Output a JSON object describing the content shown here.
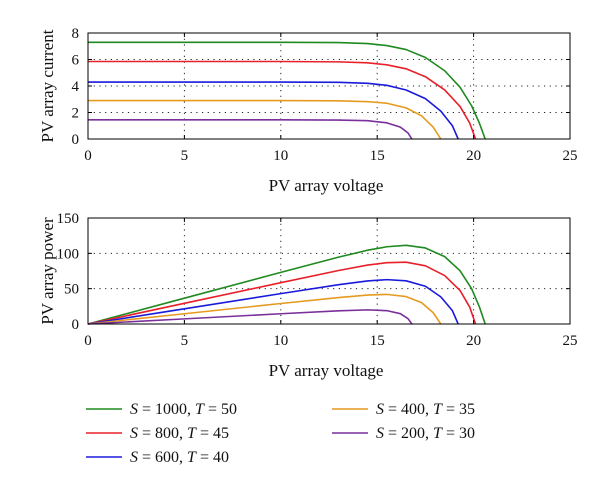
{
  "chart_data": [
    {
      "type": "line",
      "ylabel": "PV array current",
      "xlabel": "PV array voltage",
      "xlim": [
        0,
        25
      ],
      "ylim": [
        0,
        8
      ],
      "xticks": [
        0,
        5,
        10,
        15,
        20,
        25
      ],
      "yticks": [
        0,
        2,
        4,
        6,
        8
      ],
      "grid": true,
      "series": [
        {
          "name": "S = 1000, T = 50",
          "color": "#1f8a1f",
          "points": [
            [
              0,
              7.3
            ],
            [
              5,
              7.3
            ],
            [
              10,
              7.3
            ],
            [
              13,
              7.28
            ],
            [
              14.5,
              7.2
            ],
            [
              15.5,
              7.05
            ],
            [
              16.5,
              6.75
            ],
            [
              17.5,
              6.15
            ],
            [
              18.5,
              5.15
            ],
            [
              19.3,
              3.9
            ],
            [
              19.9,
              2.5
            ],
            [
              20.3,
              1.2
            ],
            [
              20.6,
              0
            ]
          ]
        },
        {
          "name": "S = 800, T = 45",
          "color": "#e8202a",
          "points": [
            [
              0,
              5.85
            ],
            [
              5,
              5.85
            ],
            [
              10,
              5.85
            ],
            [
              13,
              5.82
            ],
            [
              14.5,
              5.75
            ],
            [
              15.5,
              5.6
            ],
            [
              16.5,
              5.3
            ],
            [
              17.5,
              4.7
            ],
            [
              18.5,
              3.7
            ],
            [
              19.3,
              2.45
            ],
            [
              19.8,
              1.2
            ],
            [
              20.1,
              0
            ]
          ]
        },
        {
          "name": "S = 600, T = 40",
          "color": "#1a1adb",
          "points": [
            [
              0,
              4.3
            ],
            [
              5,
              4.3
            ],
            [
              10,
              4.3
            ],
            [
              13,
              4.28
            ],
            [
              14.5,
              4.2
            ],
            [
              15.5,
              4.05
            ],
            [
              16.5,
              3.7
            ],
            [
              17.5,
              3.05
            ],
            [
              18.3,
              2.1
            ],
            [
              18.9,
              1.0
            ],
            [
              19.2,
              0
            ]
          ]
        },
        {
          "name": "S = 400, T = 35",
          "color": "#e69a1e",
          "points": [
            [
              0,
              2.9
            ],
            [
              5,
              2.9
            ],
            [
              10,
              2.9
            ],
            [
              13,
              2.88
            ],
            [
              14.5,
              2.82
            ],
            [
              15.5,
              2.7
            ],
            [
              16.5,
              2.35
            ],
            [
              17.3,
              1.75
            ],
            [
              17.9,
              0.9
            ],
            [
              18.3,
              0
            ]
          ]
        },
        {
          "name": "S = 200, T = 30",
          "color": "#7a2f9a",
          "points": [
            [
              0,
              1.45
            ],
            [
              5,
              1.45
            ],
            [
              10,
              1.45
            ],
            [
              13,
              1.43
            ],
            [
              14.5,
              1.38
            ],
            [
              15.5,
              1.22
            ],
            [
              16.2,
              0.9
            ],
            [
              16.6,
              0.45
            ],
            [
              16.8,
              0
            ]
          ]
        }
      ]
    },
    {
      "type": "line",
      "ylabel": "PV array power",
      "xlabel": "PV array voltage",
      "xlim": [
        0,
        25
      ],
      "ylim": [
        0,
        150
      ],
      "xticks": [
        0,
        5,
        10,
        15,
        20,
        25
      ],
      "yticks": [
        0,
        50,
        100,
        150
      ],
      "grid": true,
      "series": [
        {
          "name": "S = 1000, T = 50",
          "color": "#1f8a1f",
          "points": [
            [
              0,
              0
            ],
            [
              5,
              36.5
            ],
            [
              10,
              73
            ],
            [
              13,
              94.6
            ],
            [
              14.5,
              104.4
            ],
            [
              15.5,
              109.3
            ],
            [
              16.5,
              111.4
            ],
            [
              17.5,
              107.6
            ],
            [
              18.5,
              95.3
            ],
            [
              19.3,
              75.3
            ],
            [
              19.9,
              49.8
            ],
            [
              20.3,
              24.4
            ],
            [
              20.6,
              0
            ]
          ]
        },
        {
          "name": "S = 800, T = 45",
          "color": "#e8202a",
          "points": [
            [
              0,
              0
            ],
            [
              5,
              29.3
            ],
            [
              10,
              58.5
            ],
            [
              13,
              75.7
            ],
            [
              14.5,
              83.4
            ],
            [
              15.5,
              86.8
            ],
            [
              16.5,
              87.5
            ],
            [
              17.5,
              82.3
            ],
            [
              18.5,
              68.5
            ],
            [
              19.3,
              47.3
            ],
            [
              19.8,
              23.8
            ],
            [
              20.1,
              0
            ]
          ]
        },
        {
          "name": "S = 600, T = 40",
          "color": "#1a1adb",
          "points": [
            [
              0,
              0
            ],
            [
              5,
              21.5
            ],
            [
              10,
              43
            ],
            [
              13,
              55.6
            ],
            [
              14.5,
              60.9
            ],
            [
              15.5,
              62.8
            ],
            [
              16.5,
              61.1
            ],
            [
              17.5,
              53.4
            ],
            [
              18.3,
              38.4
            ],
            [
              18.9,
              18.9
            ],
            [
              19.2,
              0
            ]
          ]
        },
        {
          "name": "S = 400, T = 35",
          "color": "#e69a1e",
          "points": [
            [
              0,
              0
            ],
            [
              5,
              14.5
            ],
            [
              10,
              29
            ],
            [
              13,
              37.4
            ],
            [
              14.5,
              40.9
            ],
            [
              15.5,
              41.9
            ],
            [
              16.5,
              38.8
            ],
            [
              17.3,
              30.3
            ],
            [
              17.9,
              16.1
            ],
            [
              18.3,
              0
            ]
          ]
        },
        {
          "name": "S = 200, T = 30",
          "color": "#7a2f9a",
          "points": [
            [
              0,
              0
            ],
            [
              5,
              7.25
            ],
            [
              10,
              14.5
            ],
            [
              13,
              18.6
            ],
            [
              14.5,
              20
            ],
            [
              15.5,
              18.9
            ],
            [
              16.2,
              14.6
            ],
            [
              16.6,
              7.5
            ],
            [
              16.8,
              0
            ]
          ]
        }
      ]
    }
  ],
  "legend": {
    "placement": "bottom",
    "entries": [
      {
        "s": "1000",
        "t": "50",
        "color": "#1f8a1f"
      },
      {
        "s": "400",
        "t": "35",
        "color": "#e69a1e"
      },
      {
        "s": "800",
        "t": "45",
        "color": "#e8202a"
      },
      {
        "s": "200",
        "t": "30",
        "color": "#7a2f9a"
      },
      {
        "s": "600",
        "t": "40",
        "color": "#1a1adb"
      }
    ]
  }
}
